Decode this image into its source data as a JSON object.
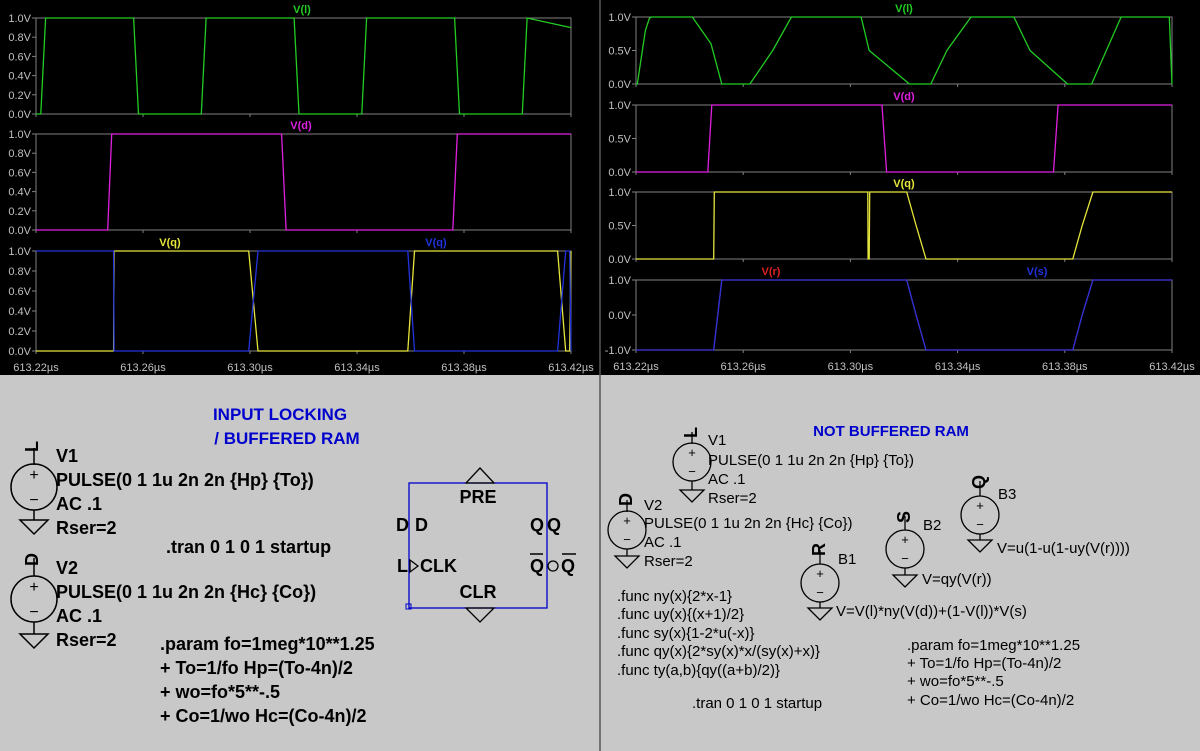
{
  "colors": {
    "waveform_bg": "#000000",
    "schematic_bg": "#c8c8c8",
    "axis_text": "#c0c0c0",
    "trace_green": "#22cc22",
    "trace_magenta": "#e020e0",
    "trace_yellow": "#e6e63c",
    "trace_blue": "#2233dd",
    "trace_red": "#dd2222",
    "title_blue": "#0000cc"
  },
  "chart_data": [
    {
      "type": "line",
      "pane": "left-1",
      "title": "V(l)",
      "yticks": [
        "0.0V",
        "0.2V",
        "0.4V",
        "0.6V",
        "0.8V",
        "1.0V"
      ],
      "ylim": [
        0,
        1.0
      ],
      "series": [
        {
          "name": "V(l)",
          "color": "#22cc22",
          "x": [
            613.22,
            613.2218,
            613.2236,
            613.2565,
            613.2583,
            613.2818,
            613.2836,
            613.3165,
            613.3183,
            613.3418,
            613.3436,
            613.3765,
            613.3783,
            613.4018,
            613.4036,
            613.42
          ],
          "y": [
            0,
            0,
            1,
            1,
            0,
            0,
            1,
            1,
            0,
            0,
            1,
            1,
            0,
            0,
            1,
            0.9
          ]
        }
      ]
    },
    {
      "type": "line",
      "pane": "left-2",
      "title": "V(d)",
      "yticks": [
        "0.0V",
        "0.2V",
        "0.4V",
        "0.6V",
        "0.8V",
        "1.0V"
      ],
      "ylim": [
        0,
        1.0
      ],
      "series": [
        {
          "name": "V(d)",
          "color": "#e020e0",
          "x": [
            613.22,
            613.2468,
            613.2483,
            613.3118,
            613.3135,
            613.3758,
            613.3775,
            613.42
          ],
          "y": [
            0,
            0,
            1,
            1,
            0,
            0,
            1,
            1
          ]
        }
      ]
    },
    {
      "type": "line",
      "pane": "left-3",
      "yticks": [
        "0.0V",
        "0.2V",
        "0.4V",
        "0.6V",
        "0.8V",
        "1.0V"
      ],
      "ylim": [
        0,
        1.0
      ],
      "series": [
        {
          "name": "V(q)",
          "color": "#e6e63c",
          "x": [
            613.22,
            613.249,
            613.2492,
            613.2995,
            613.303,
            613.359,
            613.3615,
            613.415,
            613.418,
            613.4195,
            613.42
          ],
          "y": [
            0,
            0,
            1,
            1,
            0,
            0,
            1,
            1,
            0,
            0,
            1
          ]
        },
        {
          "name": "V(q)",
          "color": "#2233dd",
          "x": [
            613.22,
            613.249,
            613.2492,
            613.2995,
            613.303,
            613.359,
            613.3615,
            613.415,
            613.418,
            613.4195,
            613.42
          ],
          "y": [
            1,
            1,
            0,
            0,
            1,
            1,
            0,
            0,
            1,
            1,
            0
          ]
        }
      ]
    },
    {
      "type": "line",
      "pane": "right-1",
      "title": "V(l)",
      "yticks": [
        "0.0V",
        "0.5V",
        "1.0V"
      ],
      "ylim": [
        0,
        1.0
      ],
      "series": [
        {
          "name": "V(l)",
          "color": "#22cc22",
          "x": [
            613.22,
            613.2205,
            613.2235,
            613.225,
            613.2258,
            613.241,
            613.248,
            613.252,
            613.2625,
            613.271,
            613.278,
            613.2825,
            613.29,
            613.304,
            613.307,
            613.322,
            613.33,
            613.336,
            613.345,
            613.361,
            613.367,
            613.381,
            613.39,
            613.401,
            613.408,
            613.411,
            613.4145,
            613.419,
            613.42
          ],
          "y": [
            0,
            0,
            0.8,
            0.98,
            1,
            1,
            0.6,
            0,
            0,
            0.5,
            1,
            1,
            1,
            1,
            0.5,
            0,
            0,
            0.5,
            1,
            1,
            0.5,
            0,
            0,
            1,
            1,
            1,
            1,
            1,
            0
          ]
        }
      ]
    },
    {
      "type": "line",
      "pane": "right-2",
      "title": "V(d)",
      "yticks": [
        "0.0V",
        "0.5V",
        "1.0V"
      ],
      "ylim": [
        0,
        1.0
      ],
      "series": [
        {
          "name": "V(d)",
          "color": "#e020e0",
          "x": [
            613.22,
            613.2468,
            613.2483,
            613.3118,
            613.3135,
            613.3758,
            613.3775,
            613.42
          ],
          "y": [
            0,
            0,
            1,
            1,
            0,
            0,
            1,
            1
          ]
        }
      ]
    },
    {
      "type": "line",
      "pane": "right-3",
      "title": "V(q)",
      "yticks": [
        "0.0V",
        "0.5V",
        "1.0V"
      ],
      "ylim": [
        0,
        1.0
      ],
      "series": [
        {
          "name": "V(q)",
          "color": "#e6e63c",
          "x": [
            613.22,
            613.249,
            613.2492,
            613.3065,
            613.3066,
            613.307,
            613.3072,
            613.321,
            613.3245,
            613.3282,
            613.383,
            613.3865,
            613.3905,
            613.42
          ],
          "y": [
            0,
            0,
            1,
            1,
            0,
            0,
            1,
            1,
            0.5,
            0,
            0,
            0.5,
            1,
            1
          ]
        }
      ]
    },
    {
      "type": "line",
      "pane": "right-4",
      "yticks": [
        "-1.0V",
        "0.0V",
        "1.0V"
      ],
      "ylim": [
        -1.0,
        1.0
      ],
      "series": [
        {
          "name": "V(r)",
          "color": "#dd2222",
          "x": [
            613.22,
            613.249,
            613.252,
            613.321,
            613.3245,
            613.3282,
            613.383,
            613.3865,
            613.3905,
            613.42
          ],
          "y": [
            -1,
            -1,
            1,
            1,
            0,
            -1,
            -1,
            0,
            1,
            1
          ]
        },
        {
          "name": "V(s)",
          "color": "#2233dd",
          "x": [
            613.22,
            613.249,
            613.252,
            613.321,
            613.3245,
            613.3282,
            613.383,
            613.3865,
            613.3905,
            613.42
          ],
          "y": [
            -1,
            -1,
            1,
            1,
            0,
            -1,
            -1,
            0,
            1,
            1
          ]
        }
      ]
    }
  ],
  "time_axis": {
    "xlim": [
      613.22,
      613.42
    ],
    "ticks": [
      613.22,
      613.26,
      613.3,
      613.34,
      613.38,
      613.42
    ],
    "labels": [
      "613.22µs",
      "613.26µs",
      "613.30µs",
      "613.34µs",
      "613.38µs",
      "613.42µs"
    ]
  },
  "left_schematic": {
    "title_line1": "INPUT LOCKING",
    "title_line2": "/ BUFFERED RAM",
    "v1": {
      "net": "L",
      "name": "V1",
      "value": "PULSE(0 1 1u 2n 2n {Hp} {To})",
      "ac": "AC .1",
      "rser": "Rser=2"
    },
    "v2": {
      "net": "D",
      "name": "V2",
      "value": "PULSE(0 1 1u 2n 2n {Hc} {Co})",
      "ac": "AC .1",
      "rser": "Rser=2"
    },
    "tran": ".tran 0 1 0 1 startup",
    "param": [
      ".param fo=1meg*10**1.25",
      "+ To=1/fo Hp=(To-4n)/2",
      "+ wo=fo*5**-.5",
      "+ Co=1/wo Hc=(Co-4n)/2"
    ],
    "flipflop": {
      "pre": "PRE",
      "clr": "CLR",
      "d": "D",
      "clk": "CLK",
      "q": "Q",
      "qbar": "Q",
      "net_d": "D",
      "net_l": "L",
      "net_q": "Q",
      "net_qbar": "Q"
    }
  },
  "right_schematic": {
    "title": "NOT BUFFERED RAM",
    "v1": {
      "net": "L",
      "name": "V1",
      "value": "PULSE(0 1 1u 2n 2n {Hp} {To})",
      "ac": "AC .1",
      "rser": "Rser=2"
    },
    "v2": {
      "net": "D",
      "name": "V2",
      "value": "PULSE(0 1 1u 2n 2n {Hc} {Co})",
      "ac": "AC .1",
      "rser": "Rser=2"
    },
    "b1": {
      "net": "R",
      "name": "B1",
      "expr": "V=V(l)*ny(V(d))+(1-V(l))*V(s)"
    },
    "b2": {
      "net": "S",
      "name": "B2",
      "expr": "V=qy(V(r))"
    },
    "b3": {
      "net": "Q",
      "name": "B3",
      "expr": "V=u(1-u(1-uy(V(r))))"
    },
    "funcs": [
      ".func ny(x){2*x-1}",
      ".func uy(x){(x+1)/2}",
      ".func sy(x){1-2*u(-x)}",
      ".func qy(x){2*sy(x)*x/(sy(x)+x)}",
      ".func ty(a,b){qy((a+b)/2)}"
    ],
    "param": [
      ".param fo=1meg*10**1.25",
      "+ To=1/fo Hp=(To-4n)/2",
      "+ wo=fo*5**-.5",
      "+ Co=1/wo Hc=(Co-4n)/2"
    ],
    "tran": ".tran 0 1 0 1 startup"
  }
}
